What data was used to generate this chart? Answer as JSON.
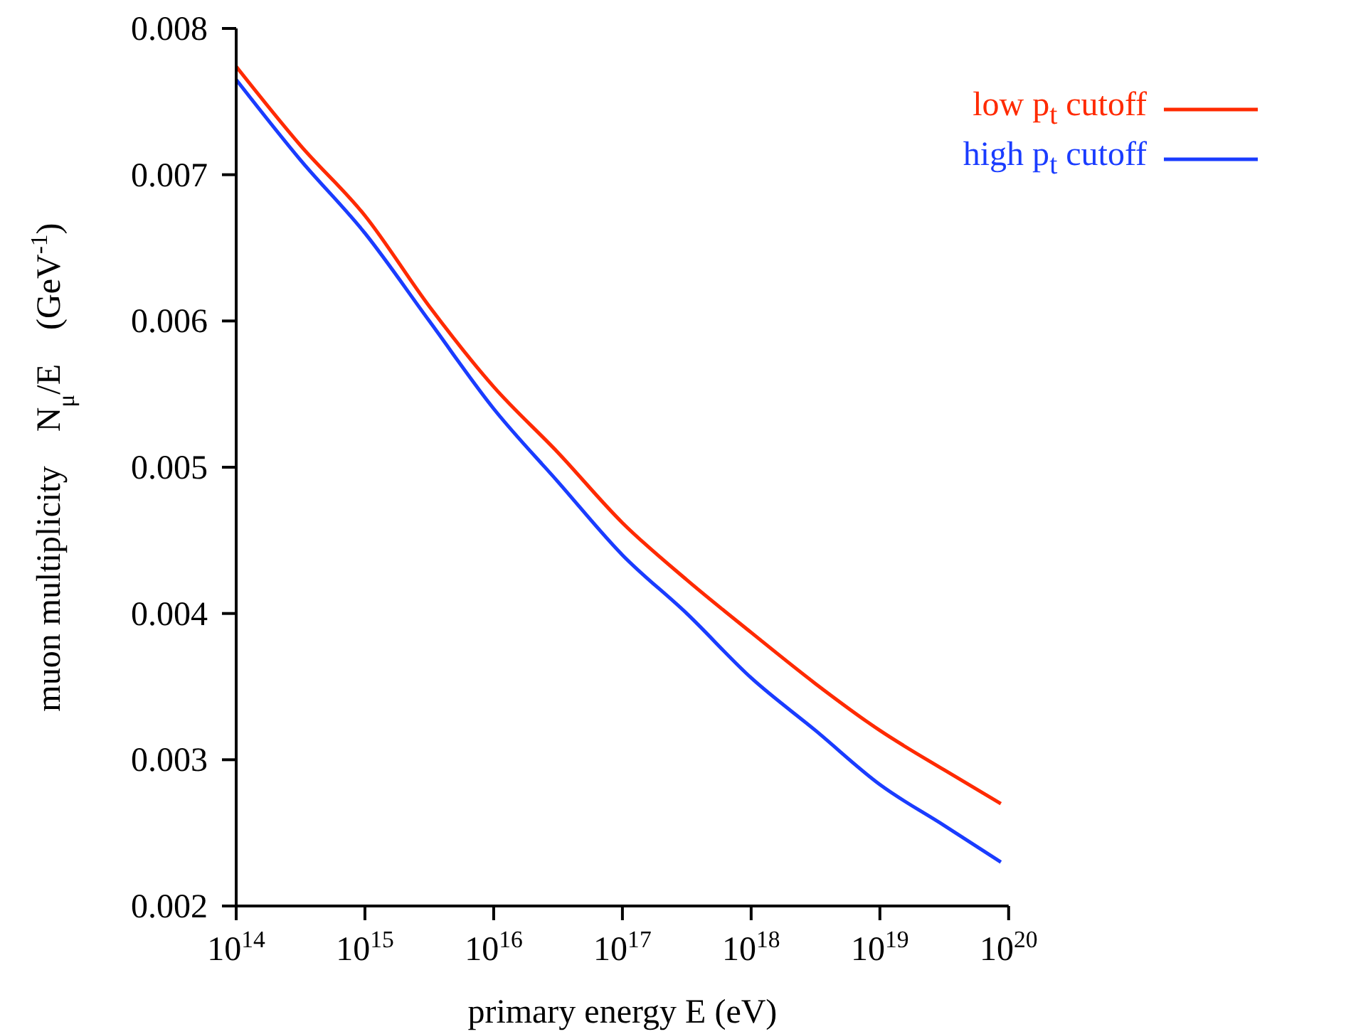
{
  "chart_data": {
    "type": "line",
    "xlabel": "primary energy E      (eV)",
    "ylabel": "muon multiplicity    N$_{μ}$/E    (GeV$^{-1}$)",
    "log": "x",
    "legend": "top right",
    "marker": "none",
    "line_style": "solid",
    "grid": false,
    "xlim": [
      100000000000000.0,
      1e+20
    ],
    "xticks": [
      {
        "value": 100000000000000.0,
        "label": "10$^{14}$"
      },
      {
        "value": 1000000000000000.0,
        "label": "10$^{15}$"
      },
      {
        "value": 1e+16,
        "label": "10$^{16}$"
      },
      {
        "value": 1e+17,
        "label": "10$^{17}$"
      },
      {
        "value": 1e+18,
        "label": "10$^{18}$"
      },
      {
        "value": 1e+19,
        "label": "10$^{19}$"
      },
      {
        "value": 1e+20,
        "label": "10$^{20}$"
      }
    ],
    "ylim": [
      0.002,
      0.008
    ],
    "yticks": [
      0.002,
      0.003,
      0.004,
      0.005,
      0.006,
      0.007,
      0.008
    ],
    "x": [
      100000000000000.0,
      316000000000000.0,
      1000000000000000.0,
      3160000000000000.0,
      1e+16,
      3.16e+16,
      1e+17,
      3.16e+17,
      1e+18,
      3.16e+18,
      1e+19,
      3.16e+19,
      8.7e+19
    ],
    "series": [
      {
        "name": "low p$_{t}$ cutoff",
        "color": "#ff2a00",
        "values": [
          0.00774,
          0.0072,
          0.00672,
          0.0061,
          0.00555,
          0.0051,
          0.00462,
          0.00423,
          0.00387,
          0.00352,
          0.0032,
          0.00293,
          0.0027
        ]
      },
      {
        "name": "high p$_{t}$ cutoff",
        "color": "#1a3cff",
        "values": [
          0.00765,
          0.0071,
          0.0066,
          0.006,
          0.0054,
          0.0049,
          0.0044,
          0.004,
          0.00356,
          0.0032,
          0.00283,
          0.00255,
          0.0023
        ]
      }
    ]
  }
}
